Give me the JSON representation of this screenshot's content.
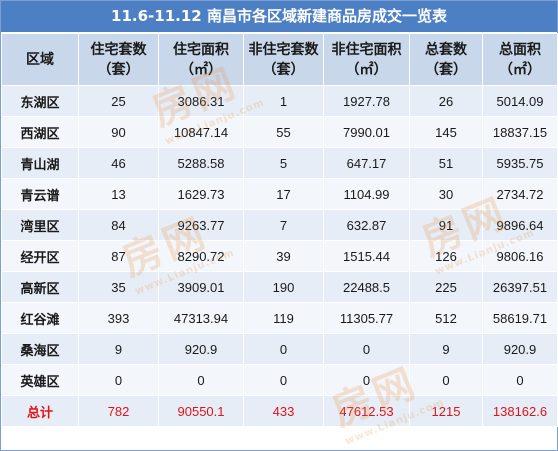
{
  "title": "11.6-11.12 南昌市各区域新建商品房成交一览表",
  "headers": [
    "区域",
    "住宅套数（套）",
    "住宅面积（㎡）",
    "非住宅套数（套）",
    "非住宅面积（㎡）",
    "总套数（套）",
    "总面积（㎡）"
  ],
  "rows": [
    [
      "东湖区",
      "25",
      "3086.31",
      "1",
      "1927.78",
      "26",
      "5014.09"
    ],
    [
      "西湖区",
      "90",
      "10847.14",
      "55",
      "7990.01",
      "145",
      "18837.15"
    ],
    [
      "青山湖",
      "46",
      "5288.58",
      "5",
      "647.17",
      "51",
      "5935.75"
    ],
    [
      "青云谱",
      "13",
      "1629.73",
      "17",
      "1104.99",
      "30",
      "2734.72"
    ],
    [
      "湾里区",
      "84",
      "9263.77",
      "7",
      "632.87",
      "91",
      "9896.64"
    ],
    [
      "经开区",
      "87",
      "8290.72",
      "39",
      "1515.44",
      "126",
      "9806.16"
    ],
    [
      "高新区",
      "35",
      "3909.01",
      "190",
      "22488.5",
      "225",
      "26397.51"
    ],
    [
      "红谷滩",
      "393",
      "47313.94",
      "119",
      "11305.77",
      "512",
      "58619.71"
    ],
    [
      "桑海区",
      "9",
      "920.9",
      "0",
      "0",
      "9",
      "920.9"
    ],
    [
      "英雄区",
      "0",
      "0",
      "0",
      "0",
      "0",
      "0"
    ]
  ],
  "total": [
    "总计",
    "782",
    "90550.1",
    "433",
    "47612.53",
    "1215",
    "138162.6"
  ],
  "watermark": {
    "text": "房网",
    "sub": "www.Lianju.com"
  },
  "colors": {
    "title_bg": "#4d7fc4",
    "header_bg": "#c9d7ea",
    "row_odd": "#e6edf6",
    "row_even": "#f3f6fb",
    "total_text": "#e0131b"
  }
}
